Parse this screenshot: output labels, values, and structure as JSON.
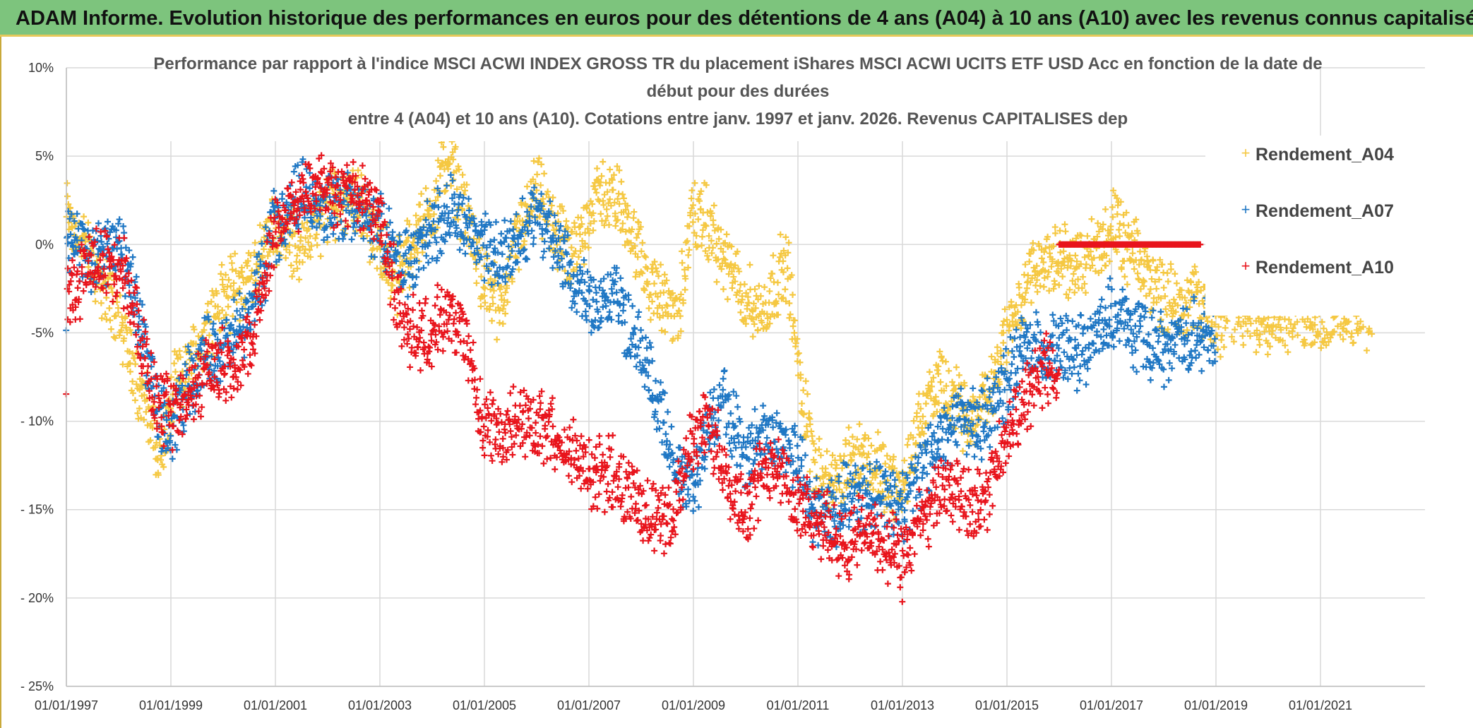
{
  "banner": {
    "title": "ADAM Informe. Evolution historique des performances en euros pour des détentions de 4 ans (A04) à 10 ans (A10) avec les revenus connus capitalisés"
  },
  "colors": {
    "A04": "#f5c842",
    "A07": "#1f77c4",
    "A10": "#e8141c",
    "banner": "#7dc47d",
    "grid": "#d9d9d9"
  },
  "chart_data": {
    "type": "scatter",
    "title_lines": [
      "Performance par rapport à l'indice MSCI ACWI INDEX GROSS TR  du placement iShares MSCI ACWI UCITS ETF USD Acc en fonction de la date de",
      "début pour des durées",
      "entre 4 (A04) et 10 ans (A10). Cotations entre janv. 1997 et janv. 2026. Revenus CAPITALISES dep"
    ],
    "xlabel": "",
    "ylabel": "",
    "x_range": [
      1997.0,
      2023.0
    ],
    "ylim": [
      -25,
      10
    ],
    "y_ticks": [
      10,
      5,
      0,
      -5,
      -10,
      -15,
      -20,
      -25
    ],
    "y_tick_labels": [
      "10%",
      "5%",
      "0%",
      "-5%",
      "- 10%",
      "- 15%",
      "- 20%",
      "- 25%"
    ],
    "x_ticks": [
      1997,
      1999,
      2001,
      2003,
      2005,
      2007,
      2009,
      2011,
      2013,
      2015,
      2017,
      2019,
      2021
    ],
    "x_tick_labels": [
      "01/01/1997",
      "01/01/1999",
      "01/01/2001",
      "01/01/2003",
      "01/01/2005",
      "01/01/2007",
      "01/01/2009",
      "01/01/2011",
      "01/01/2013",
      "01/01/2015",
      "01/01/2017",
      "01/01/2019",
      "01/01/2021"
    ],
    "legend_position": "top-right",
    "series": [
      {
        "name": "Rendement_A04",
        "key": "A04",
        "x_end": 2022.0,
        "trend": [
          [
            1997.0,
            2
          ],
          [
            1997.5,
            -1
          ],
          [
            1998.0,
            -4
          ],
          [
            1998.5,
            -9
          ],
          [
            1998.8,
            -12
          ],
          [
            1999.1,
            -8
          ],
          [
            1999.5,
            -6
          ],
          [
            2000.0,
            -3
          ],
          [
            2000.5,
            -2
          ],
          [
            2001.0,
            1
          ],
          [
            2001.5,
            0
          ],
          [
            2002.0,
            2
          ],
          [
            2002.5,
            3
          ],
          [
            2003.0,
            0
          ],
          [
            2003.3,
            -2
          ],
          [
            2003.6,
            0
          ],
          [
            2004.0,
            2
          ],
          [
            2004.3,
            5
          ],
          [
            2004.6,
            2
          ],
          [
            2005.0,
            -2
          ],
          [
            2005.3,
            -4
          ],
          [
            2005.6,
            0
          ],
          [
            2006.0,
            3
          ],
          [
            2006.3,
            1
          ],
          [
            2006.7,
            -1
          ],
          [
            2007.0,
            2
          ],
          [
            2007.3,
            3
          ],
          [
            2007.7,
            2
          ],
          [
            2008.0,
            -1
          ],
          [
            2008.3,
            -3
          ],
          [
            2008.7,
            -4
          ],
          [
            2009.0,
            2
          ],
          [
            2009.3,
            1
          ],
          [
            2009.6,
            -1
          ],
          [
            2010.0,
            -3
          ],
          [
            2010.3,
            -4
          ],
          [
            2010.6,
            -2
          ],
          [
            2010.8,
            -1
          ],
          [
            2011.0,
            -7
          ],
          [
            2011.3,
            -12
          ],
          [
            2011.7,
            -14
          ],
          [
            2012.0,
            -12
          ],
          [
            2012.3,
            -12
          ],
          [
            2012.6,
            -13
          ],
          [
            2013.0,
            -14
          ],
          [
            2013.3,
            -10
          ],
          [
            2013.7,
            -8
          ],
          [
            2014.0,
            -9
          ],
          [
            2014.3,
            -10
          ],
          [
            2014.7,
            -8
          ],
          [
            2015.0,
            -5
          ],
          [
            2015.3,
            -3
          ],
          [
            2015.6,
            -1
          ],
          [
            2016.0,
            -1
          ],
          [
            2016.5,
            -1
          ],
          [
            2017.0,
            1
          ],
          [
            2017.5,
            -1
          ],
          [
            2018.0,
            -3
          ],
          [
            2018.5,
            -3
          ],
          [
            2019.0,
            -4
          ],
          [
            2019.5,
            -4
          ],
          [
            2020.0,
            -4
          ],
          [
            2020.5,
            -4
          ],
          [
            2021.0,
            -4
          ],
          [
            2021.5,
            -4
          ],
          [
            2022.0,
            -4
          ]
        ]
      },
      {
        "name": "Rendement_A07",
        "key": "A07",
        "x_end": 2019.0,
        "trend": [
          [
            1997.0,
            1
          ],
          [
            1997.5,
            -1
          ],
          [
            1998.0,
            0
          ],
          [
            1998.3,
            -3
          ],
          [
            1998.7,
            -9
          ],
          [
            1999.0,
            -11
          ],
          [
            1999.3,
            -8
          ],
          [
            1999.7,
            -6
          ],
          [
            2000.0,
            -6
          ],
          [
            2000.5,
            -4
          ],
          [
            2001.0,
            1
          ],
          [
            2001.5,
            3
          ],
          [
            2002.0,
            2
          ],
          [
            2002.5,
            2
          ],
          [
            2003.0,
            1
          ],
          [
            2003.3,
            -1
          ],
          [
            2003.6,
            -1
          ],
          [
            2004.0,
            1
          ],
          [
            2004.3,
            2
          ],
          [
            2004.6,
            1
          ],
          [
            2005.0,
            0
          ],
          [
            2005.3,
            -1
          ],
          [
            2005.6,
            0
          ],
          [
            2006.0,
            2
          ],
          [
            2006.3,
            0
          ],
          [
            2006.7,
            -2
          ],
          [
            2007.0,
            -3
          ],
          [
            2007.5,
            -3
          ],
          [
            2008.0,
            -6
          ],
          [
            2008.3,
            -9
          ],
          [
            2008.7,
            -13
          ],
          [
            2009.0,
            -14
          ],
          [
            2009.3,
            -10
          ],
          [
            2009.6,
            -9
          ],
          [
            2010.0,
            -12
          ],
          [
            2010.3,
            -11
          ],
          [
            2010.6,
            -11
          ],
          [
            2011.0,
            -12
          ],
          [
            2011.3,
            -15
          ],
          [
            2011.7,
            -15
          ],
          [
            2012.0,
            -14
          ],
          [
            2012.5,
            -14
          ],
          [
            2013.0,
            -15
          ],
          [
            2013.3,
            -13
          ],
          [
            2013.7,
            -11
          ],
          [
            2014.0,
            -10
          ],
          [
            2014.5,
            -10
          ],
          [
            2015.0,
            -8
          ],
          [
            2015.3,
            -6
          ],
          [
            2015.7,
            -6
          ],
          [
            2016.0,
            -6
          ],
          [
            2016.5,
            -6
          ],
          [
            2017.0,
            -4
          ],
          [
            2017.5,
            -5
          ],
          [
            2018.0,
            -6
          ],
          [
            2018.5,
            -5
          ],
          [
            2019.0,
            -5
          ]
        ]
      },
      {
        "name": "Rendement_A10",
        "key": "A10",
        "x_end": 2016.0,
        "trend": [
          [
            1997.0,
            -3
          ],
          [
            1997.5,
            -1
          ],
          [
            1998.0,
            -1
          ],
          [
            1998.3,
            -3
          ],
          [
            1998.6,
            -8
          ],
          [
            1999.0,
            -10
          ],
          [
            1999.3,
            -9
          ],
          [
            1999.7,
            -7
          ],
          [
            2000.0,
            -7
          ],
          [
            2000.5,
            -6
          ],
          [
            2001.0,
            1
          ],
          [
            2001.5,
            3
          ],
          [
            2002.0,
            3
          ],
          [
            2002.5,
            3
          ],
          [
            2003.0,
            2
          ],
          [
            2003.3,
            -3
          ],
          [
            2003.6,
            -5
          ],
          [
            2004.0,
            -5
          ],
          [
            2004.3,
            -4
          ],
          [
            2004.6,
            -5
          ],
          [
            2005.0,
            -10
          ],
          [
            2005.3,
            -11
          ],
          [
            2005.6,
            -10
          ],
          [
            2006.0,
            -10
          ],
          [
            2006.5,
            -11
          ],
          [
            2007.0,
            -13
          ],
          [
            2007.5,
            -13
          ],
          [
            2008.0,
            -15
          ],
          [
            2008.5,
            -16
          ],
          [
            2009.0,
            -11
          ],
          [
            2009.3,
            -10
          ],
          [
            2009.6,
            -13
          ],
          [
            2010.0,
            -15
          ],
          [
            2010.3,
            -13
          ],
          [
            2010.6,
            -12
          ],
          [
            2011.0,
            -15
          ],
          [
            2011.5,
            -16
          ],
          [
            2012.0,
            -17
          ],
          [
            2012.3,
            -16
          ],
          [
            2012.6,
            -17
          ],
          [
            2013.0,
            -18
          ],
          [
            2013.3,
            -16
          ],
          [
            2013.7,
            -14
          ],
          [
            2014.0,
            -14
          ],
          [
            2014.5,
            -15
          ],
          [
            2015.0,
            -11
          ],
          [
            2015.3,
            -9
          ],
          [
            2015.7,
            -7
          ],
          [
            2016.0,
            -7
          ]
        ],
        "flat_segment": {
          "x_from": 2016.0,
          "x_to": 2018.7,
          "y": 0
        }
      }
    ]
  }
}
